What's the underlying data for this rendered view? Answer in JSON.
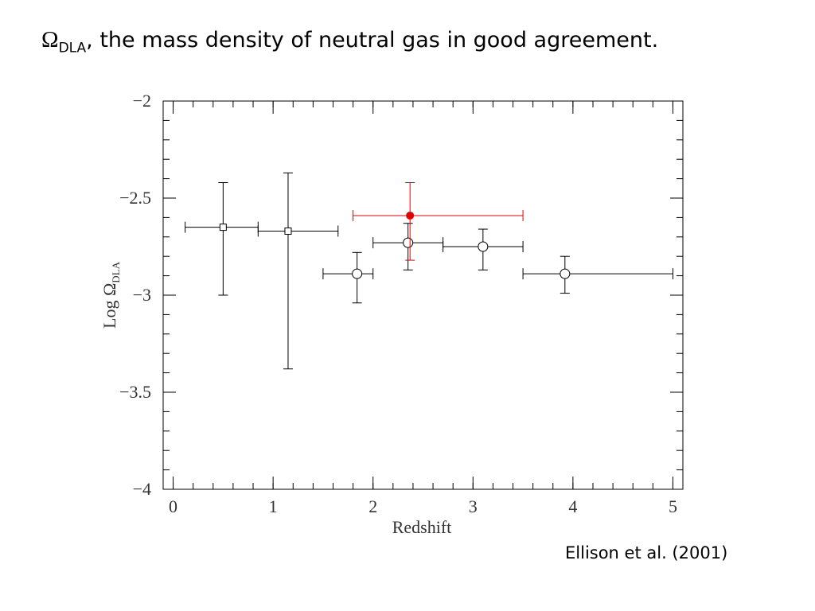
{
  "slide_title": {
    "symbol": "Ω",
    "subscript": "DLA",
    "text": ", the mass density of neutral gas in good agreement."
  },
  "citation": "Ellison et al. (2001)",
  "chart_data": {
    "type": "errorbar-scatter",
    "xlabel": "Redshift",
    "ylabel": {
      "text": "Log Ω",
      "subscript": "DLA"
    },
    "xlim": [
      -0.1,
      5.1
    ],
    "ylim": [
      -4,
      -2
    ],
    "xticks": [
      0,
      1,
      2,
      3,
      4,
      5
    ],
    "yticks": [
      {
        "value": -2,
        "label": "−2"
      },
      {
        "value": -2.5,
        "label": "−2.5"
      },
      {
        "value": -3,
        "label": "−3"
      },
      {
        "value": -3.5,
        "label": "−3.5"
      },
      {
        "value": -4,
        "label": "−4"
      }
    ],
    "x_minor_step": 0.2,
    "y_minor_step": 0.1,
    "series": [
      {
        "marker": "square",
        "color": "#000000",
        "x": [
          0.5,
          1.15
        ],
        "values": [
          -2.65,
          -2.67
        ],
        "x_low": [
          0.12,
          0.85
        ],
        "x_high": [
          0.85,
          1.65
        ],
        "y_low": [
          -3.0,
          -3.38
        ],
        "y_high": [
          -2.42,
          -2.37
        ]
      },
      {
        "marker": "circle",
        "color": "#000000",
        "x": [
          1.84,
          2.35,
          3.1,
          3.92
        ],
        "values": [
          -2.89,
          -2.73,
          -2.75,
          -2.89
        ],
        "x_low": [
          1.5,
          2.0,
          2.7,
          3.5
        ],
        "x_high": [
          2.0,
          2.7,
          3.5,
          5.0
        ],
        "y_low": [
          -3.04,
          -2.87,
          -2.87,
          -2.99
        ],
        "y_high": [
          -2.78,
          -2.63,
          -2.66,
          -2.8
        ]
      },
      {
        "marker": "filled-circle",
        "color": "#e00000",
        "x": [
          2.37
        ],
        "values": [
          -2.59
        ],
        "x_low": [
          1.8
        ],
        "x_high": [
          3.5
        ],
        "y_low": [
          -2.82
        ],
        "y_high": [
          -2.42
        ]
      }
    ]
  }
}
